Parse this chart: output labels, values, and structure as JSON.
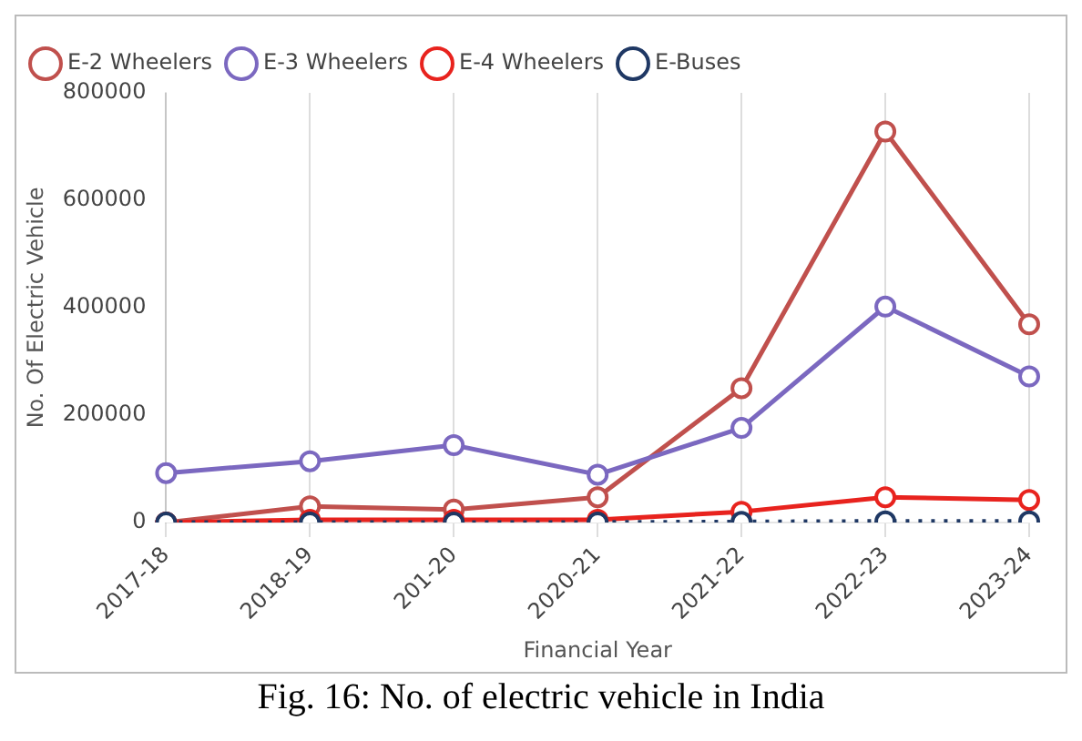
{
  "chart_data": {
    "type": "line",
    "xlabel": "Financial Year",
    "ylabel": "No. Of Electric Vehicle",
    "categories": [
      "2017-18",
      "2018-19",
      "201-20",
      "2020-21",
      "2021-22",
      "2022-23",
      "2023-24"
    ],
    "series": [
      {
        "name": "E-2 Wheelers",
        "color": "#c0504d",
        "values": [
          0,
          30000,
          24000,
          47000,
          250000,
          728000,
          369000
        ]
      },
      {
        "name": "E-3 Wheelers",
        "color": "#7b68c0",
        "values": [
          92000,
          114000,
          144000,
          89000,
          176000,
          402000,
          272000
        ]
      },
      {
        "name": "E-4 Wheelers",
        "color": "#e8231e",
        "values": [
          0,
          5000,
          5000,
          5000,
          20000,
          47000,
          42000
        ]
      },
      {
        "name": "E-Buses",
        "color": "#1f3864",
        "line_style": "dotted",
        "values": [
          0,
          0,
          0,
          0,
          1000,
          2000,
          2000
        ]
      }
    ],
    "ylim": [
      0,
      800000
    ],
    "yticks": [
      0,
      200000,
      400000,
      600000,
      800000
    ],
    "grid": "x",
    "legend": "top left",
    "marker": "circle",
    "line_style": "solid",
    "annotations": [
      "Fig. 16: No. of electric vehicle in India"
    ]
  }
}
